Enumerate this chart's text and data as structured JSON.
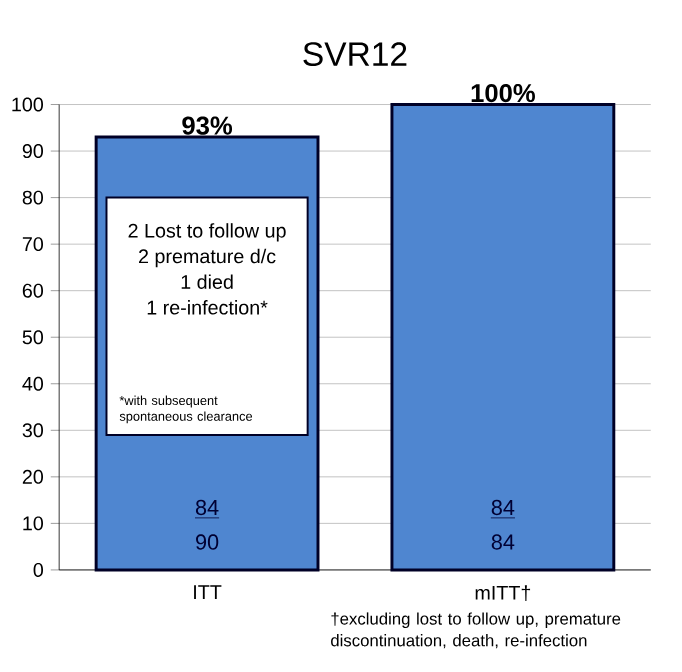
{
  "chart_data": {
    "type": "bar",
    "title": "SVR12",
    "categories": [
      "ITT",
      "mITT†"
    ],
    "values": [
      93,
      100
    ],
    "value_labels": [
      "93%",
      "100%"
    ],
    "color": "#4f86d0",
    "ylim": [
      0,
      100
    ],
    "yticks": [
      0,
      10,
      20,
      30,
      40,
      50,
      60,
      70,
      80,
      90,
      100
    ],
    "grid": "y",
    "annotations": [
      "2 Lost to follow up",
      "2 premature d/c",
      "1 died",
      "1 re-infection*",
      "*with subsequent spontaneous clearance",
      "†excluding lost to follow up, premature discontinuation, death, re-infection",
      "84",
      "90",
      "84",
      "84"
    ]
  }
}
